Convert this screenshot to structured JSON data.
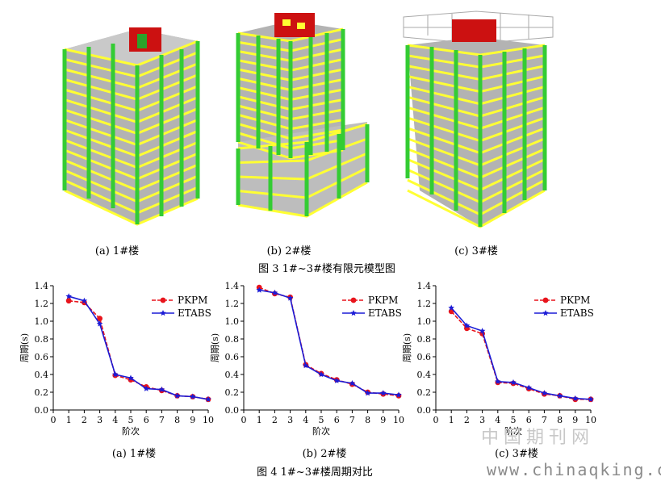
{
  "figure3": {
    "panels": [
      {
        "caption": "(a) 1#楼"
      },
      {
        "caption": "(b) 2#楼"
      },
      {
        "caption": "(c) 3#楼"
      }
    ],
    "caption": "图 3 1#~3#楼有限元模型图"
  },
  "figure4": {
    "caption": "图 4 1#~3#楼周期对比"
  },
  "watermark": {
    "cn": "中国期刊网",
    "url": "www.chinaqking.com"
  },
  "colors": {
    "pkpm": "#e8141c",
    "etabs": "#1b1bd6",
    "beam": "#ffff33",
    "column": "#33cc33",
    "slab": "#a6a6a6",
    "core": "#cc1111"
  },
  "chart_data": [
    {
      "type": "line",
      "caption": "(a) 1#楼",
      "xlabel": "阶次",
      "ylabel": "周期(s)",
      "xlim": [
        0,
        10
      ],
      "ylim": [
        0,
        1.4
      ],
      "xticks": [
        "0",
        "1",
        "2",
        "3",
        "4",
        "5",
        "6",
        "7",
        "8",
        "9",
        "10"
      ],
      "yticks": [
        "0.0",
        "0.2",
        "0.4",
        "0.6",
        "0.8",
        "1.0",
        "1.2",
        "1.4"
      ],
      "legend": "top-right",
      "x": [
        1,
        2,
        3,
        4,
        5,
        6,
        7,
        8,
        9,
        10
      ],
      "series": [
        {
          "name": "PKPM",
          "values": [
            1.23,
            1.21,
            1.03,
            0.39,
            0.34,
            0.26,
            0.22,
            0.16,
            0.15,
            0.12
          ]
        },
        {
          "name": "ETABS",
          "values": [
            1.28,
            1.23,
            0.97,
            0.4,
            0.36,
            0.24,
            0.23,
            0.16,
            0.15,
            0.12
          ]
        }
      ]
    },
    {
      "type": "line",
      "caption": "(b) 2#楼",
      "xlabel": "阶次",
      "ylabel": "周期(s)",
      "xlim": [
        0,
        10
      ],
      "ylim": [
        0,
        1.4
      ],
      "xticks": [
        "0",
        "1",
        "2",
        "3",
        "4",
        "5",
        "6",
        "7",
        "8",
        "9",
        "10"
      ],
      "yticks": [
        "0.0",
        "0.2",
        "0.4",
        "0.6",
        "0.8",
        "1.0",
        "1.2",
        "1.4"
      ],
      "legend": "top-right",
      "x": [
        1,
        2,
        3,
        4,
        5,
        6,
        7,
        8,
        9,
        10
      ],
      "series": [
        {
          "name": "PKPM",
          "values": [
            1.38,
            1.31,
            1.27,
            0.51,
            0.41,
            0.34,
            0.29,
            0.2,
            0.18,
            0.16
          ]
        },
        {
          "name": "ETABS",
          "values": [
            1.35,
            1.32,
            1.26,
            0.5,
            0.4,
            0.33,
            0.3,
            0.19,
            0.19,
            0.17
          ]
        }
      ]
    },
    {
      "type": "line",
      "caption": "(c) 3#楼",
      "xlabel": "阶次",
      "ylabel": "周期(s)",
      "xlim": [
        0,
        10
      ],
      "ylim": [
        0,
        1.4
      ],
      "xticks": [
        "0",
        "1",
        "2",
        "3",
        "4",
        "5",
        "6",
        "7",
        "8",
        "9",
        "10"
      ],
      "yticks": [
        "0.0",
        "0.2",
        "0.4",
        "0.6",
        "0.8",
        "1.0",
        "1.2",
        "1.4"
      ],
      "legend": "top-right",
      "x": [
        1,
        2,
        3,
        4,
        5,
        6,
        7,
        8,
        9,
        10
      ],
      "series": [
        {
          "name": "PKPM",
          "values": [
            1.11,
            0.92,
            0.86,
            0.31,
            0.3,
            0.24,
            0.18,
            0.16,
            0.12,
            0.12
          ]
        },
        {
          "name": "ETABS",
          "values": [
            1.15,
            0.95,
            0.89,
            0.32,
            0.31,
            0.25,
            0.19,
            0.16,
            0.13,
            0.12
          ]
        }
      ]
    }
  ]
}
